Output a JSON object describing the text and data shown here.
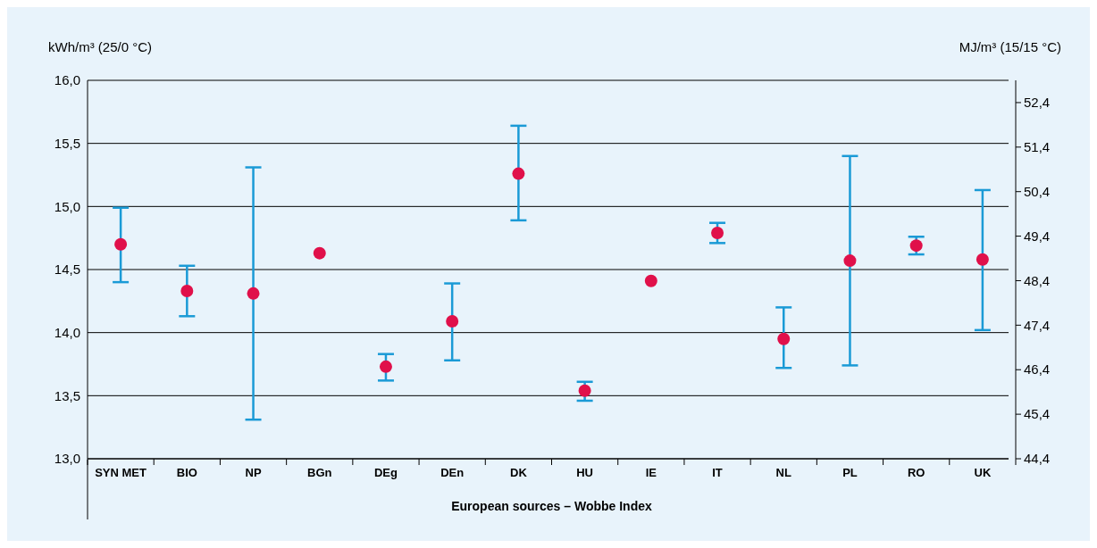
{
  "chart_data": {
    "type": "scatter",
    "xlabel": "European sources – Wobbe Index",
    "ylabel": "kWh/m³ (25/0 °C)",
    "y2label": "MJ/m³ (15/15 °C)",
    "categories": [
      "SYN MET",
      "BIO",
      "NP",
      "BGn",
      "DEg",
      "DEn",
      "DK",
      "HU",
      "IE",
      "IT",
      "NL",
      "PL",
      "RO",
      "UK"
    ],
    "series": [
      {
        "color": "#e0104a",
        "values": [
          14.7,
          14.33,
          14.31,
          14.63,
          13.73,
          14.09,
          15.26,
          13.54,
          14.41,
          14.79,
          13.95,
          14.57,
          14.69,
          14.58
        ],
        "errors": [
          [
            14.4,
            14.99
          ],
          [
            14.13,
            14.53
          ],
          [
            13.31,
            15.31
          ],
          null,
          [
            13.62,
            13.83
          ],
          [
            13.78,
            14.39
          ],
          [
            14.89,
            15.64
          ],
          [
            13.46,
            13.61
          ],
          null,
          [
            14.71,
            14.87
          ],
          [
            13.72,
            14.2
          ],
          [
            13.74,
            15.4
          ],
          [
            14.62,
            14.76
          ],
          [
            14.02,
            15.13
          ]
        ]
      }
    ],
    "ylim": [
      13.0,
      16.0
    ],
    "yticks": [
      {
        "value": 13.0,
        "label": "13,0"
      },
      {
        "value": 13.5,
        "label": "13,5"
      },
      {
        "value": 14.0,
        "label": "14,0"
      },
      {
        "value": 14.5,
        "label": "14,5"
      },
      {
        "value": 15.0,
        "label": "15,0"
      },
      {
        "value": 15.5,
        "label": "15,5"
      },
      {
        "value": 16.0,
        "label": "16,0"
      }
    ],
    "y2lim": [
      44.4,
      52.9
    ],
    "y2ticks": [
      {
        "value": 44.4,
        "label": "44,4"
      },
      {
        "value": 45.4,
        "label": "45,4"
      },
      {
        "value": 46.4,
        "label": "46,4"
      },
      {
        "value": 47.4,
        "label": "47,4"
      },
      {
        "value": 48.4,
        "label": "48,4"
      },
      {
        "value": 49.4,
        "label": "49,4"
      },
      {
        "value": 50.4,
        "label": "50,4"
      },
      {
        "value": 51.4,
        "label": "51,4"
      },
      {
        "value": 52.4,
        "label": "52,4"
      }
    ],
    "grid": "y",
    "marker": "circle"
  }
}
